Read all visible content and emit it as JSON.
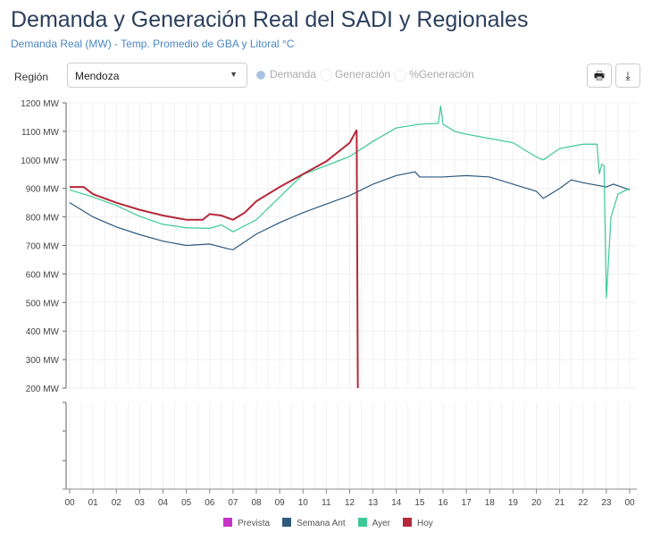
{
  "header": {
    "title": "Demanda y Generación Real del SADI y Regionales",
    "subtitle": "Demanda Real (MW) - Temp. Promedio de GBA y Litoral °C"
  },
  "controls": {
    "region_label": "Región",
    "region_value": "Mendoza",
    "radios": [
      {
        "label": "Demanda",
        "selected": true
      },
      {
        "label": "Generación",
        "selected": false
      },
      {
        "label": "%Generación",
        "selected": false
      }
    ],
    "print_icon": "printer-icon",
    "download_icon": "download-icon"
  },
  "chart_data": {
    "type": "line",
    "ylim": [
      200,
      1200
    ],
    "yticks": [
      "1200 MW",
      "1100 MW",
      "1000 MW",
      "900 MW",
      "800 MW",
      "700 MW",
      "600 MW",
      "500 MW",
      "400 MW",
      "300 MW",
      "200 MW"
    ],
    "xticks": [
      "00",
      "01",
      "02",
      "03",
      "04",
      "05",
      "06",
      "07",
      "08",
      "09",
      "10",
      "11",
      "12",
      "13",
      "14",
      "15",
      "16",
      "17",
      "18",
      "19",
      "20",
      "21",
      "22",
      "23",
      "00"
    ],
    "grid": true,
    "legend_placement": "bottom",
    "series": [
      {
        "name": "Prevista",
        "color": "#c534c8",
        "points": []
      },
      {
        "name": "Semana Ant",
        "color": "#2e5a7e",
        "points": [
          [
            0,
            850
          ],
          [
            1,
            800
          ],
          [
            2,
            765
          ],
          [
            3,
            738
          ],
          [
            4,
            715
          ],
          [
            5,
            700
          ],
          [
            6,
            705
          ],
          [
            6.8,
            688
          ],
          [
            7,
            685
          ],
          [
            8,
            740
          ],
          [
            9,
            780
          ],
          [
            10,
            815
          ],
          [
            11,
            845
          ],
          [
            12,
            875
          ],
          [
            13,
            915
          ],
          [
            14,
            945
          ],
          [
            14.8,
            958
          ],
          [
            15,
            940
          ],
          [
            16,
            940
          ],
          [
            17,
            945
          ],
          [
            18,
            940
          ],
          [
            19,
            915
          ],
          [
            20,
            890
          ],
          [
            20.3,
            865
          ],
          [
            21,
            900
          ],
          [
            21.5,
            930
          ],
          [
            22,
            920
          ],
          [
            23,
            905
          ],
          [
            23.3,
            915
          ],
          [
            24,
            895
          ]
        ]
      },
      {
        "name": "Ayer",
        "color": "#3cc995",
        "points": [
          [
            0,
            895
          ],
          [
            1,
            870
          ],
          [
            2,
            840
          ],
          [
            3,
            802
          ],
          [
            4,
            774
          ],
          [
            5,
            762
          ],
          [
            6,
            760
          ],
          [
            6.5,
            772
          ],
          [
            7,
            748
          ],
          [
            8,
            790
          ],
          [
            9,
            870
          ],
          [
            10,
            949
          ],
          [
            11,
            980
          ],
          [
            12,
            1012
          ],
          [
            13,
            1065
          ],
          [
            14,
            1112
          ],
          [
            15,
            1125
          ],
          [
            15.8,
            1128
          ],
          [
            15.9,
            1190
          ],
          [
            16,
            1125
          ],
          [
            16.5,
            1100
          ],
          [
            17,
            1090
          ],
          [
            18,
            1075
          ],
          [
            19,
            1060
          ],
          [
            20,
            1010
          ],
          [
            20.3,
            1000
          ],
          [
            21,
            1040
          ],
          [
            22,
            1055
          ],
          [
            22.6,
            1055
          ],
          [
            22.7,
            950
          ],
          [
            22.8,
            985
          ],
          [
            22.9,
            980
          ],
          [
            23,
            515
          ],
          [
            23.2,
            800
          ],
          [
            23.5,
            880
          ],
          [
            24,
            900
          ]
        ]
      },
      {
        "name": "Hoy",
        "color": "#b5283a",
        "points": [
          [
            0,
            905
          ],
          [
            0.6,
            905
          ],
          [
            1,
            880
          ],
          [
            2,
            850
          ],
          [
            3,
            825
          ],
          [
            4,
            805
          ],
          [
            5,
            790
          ],
          [
            5.7,
            790
          ],
          [
            6,
            810
          ],
          [
            6.5,
            805
          ],
          [
            7,
            790
          ],
          [
            7.5,
            815
          ],
          [
            8,
            855
          ],
          [
            9,
            905
          ],
          [
            10,
            950
          ],
          [
            11,
            995
          ],
          [
            12,
            1060
          ],
          [
            12.3,
            1105
          ],
          [
            12.35,
            200
          ]
        ]
      }
    ]
  }
}
